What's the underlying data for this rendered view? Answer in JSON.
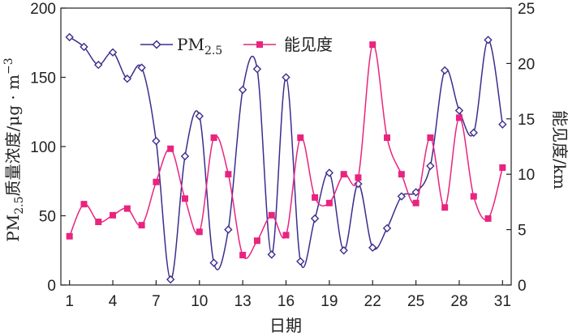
{
  "chart_data": {
    "type": "line",
    "x": [
      1,
      2,
      3,
      4,
      5,
      6,
      7,
      8,
      9,
      10,
      11,
      12,
      13,
      14,
      15,
      16,
      17,
      18,
      19,
      20,
      21,
      22,
      23,
      24,
      25,
      26,
      27,
      28,
      29,
      30,
      31
    ],
    "xlabel": "日期",
    "x_ticks": [
      1,
      4,
      7,
      10,
      13,
      16,
      19,
      22,
      25,
      28,
      31
    ],
    "y_left": {
      "label_prefix": "PM",
      "label_sub": "2.5",
      "label_suffix": "质量浓度/μg · m",
      "label_sup": "−3",
      "lim": [
        0,
        200
      ],
      "ticks": [
        0,
        50,
        100,
        150,
        200
      ]
    },
    "y_right": {
      "label": "能见度/km",
      "lim": [
        0,
        25
      ],
      "ticks": [
        0,
        5,
        10,
        15,
        20,
        25
      ]
    },
    "series": [
      {
        "name_main": "PM",
        "name_sub": "2.5",
        "axis": "left",
        "color": "#3b2e8c",
        "marker": "diamond",
        "values": [
          179,
          172,
          159,
          168,
          149,
          157,
          104,
          4,
          93,
          122,
          16,
          40,
          141,
          156,
          22,
          150,
          17,
          48,
          81,
          25,
          73,
          27,
          41,
          64,
          67,
          86,
          155,
          126,
          110,
          177,
          116
        ]
      },
      {
        "name": "能见度",
        "axis": "right",
        "color": "#e8247f",
        "marker": "square",
        "values": [
          4.4,
          7.3,
          5.7,
          6.3,
          6.9,
          5.4,
          9.3,
          12.3,
          7.8,
          4.8,
          13.3,
          10,
          2.7,
          4,
          6.3,
          4.5,
          13.3,
          7.9,
          7.4,
          10,
          9.7,
          21.7,
          13.3,
          10,
          7.4,
          13.3,
          7,
          15.1,
          8,
          6,
          10.6
        ]
      }
    ],
    "legend_position": "top",
    "grid": false
  }
}
